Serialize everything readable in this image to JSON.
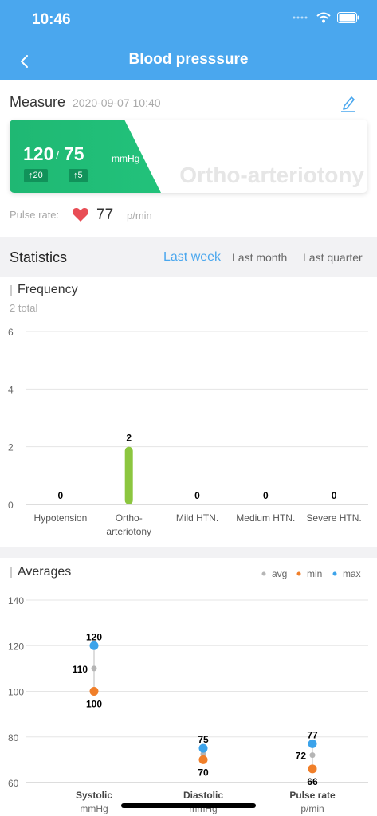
{
  "status_bar": {
    "time": "10:46"
  },
  "header": {
    "title": "Blood presssure"
  },
  "measure": {
    "label": "Measure",
    "datetime": "2020-09-07 10:40",
    "systolic": "120",
    "separator": "/",
    "diastolic": "75",
    "unit": "mmHg",
    "systolic_change": "↑20",
    "diastolic_change": "↑5",
    "classification": "Ortho-arteriotony",
    "pulse_label": "Pulse rate:",
    "pulse_value": "77",
    "pulse_unit": "p/min",
    "accent_color": "#1fb873"
  },
  "statistics": {
    "title": "Statistics",
    "tabs": [
      "Last week",
      "Last month",
      "Last quarter"
    ],
    "active_tab": "Last week"
  },
  "frequency": {
    "title": "Frequency",
    "subtitle": "2 total"
  },
  "averages": {
    "title": "Averages",
    "legend": [
      {
        "label": "avg",
        "color": "#b5b5b5"
      },
      {
        "label": "min",
        "color": "#f07f2a"
      },
      {
        "label": "max",
        "color": "#3ca3ea"
      }
    ]
  },
  "chart_data": [
    {
      "type": "bar",
      "title": "Frequency",
      "categories": [
        "Hypotension",
        "Ortho-arteriotony",
        "Mild HTN.",
        "Medium HTN.",
        "Severe HTN."
      ],
      "category_labels": [
        [
          "Hypotension"
        ],
        [
          "Ortho-",
          "arteriotony"
        ],
        [
          "Mild HTN."
        ],
        [
          "Medium HTN."
        ],
        [
          "Severe HTN."
        ]
      ],
      "values": [
        0,
        2,
        0,
        0,
        0
      ],
      "ylim": [
        0,
        6
      ],
      "yticks": [
        0,
        2,
        4,
        6
      ],
      "bar_color": "#8cc63f",
      "grid": true
    },
    {
      "type": "scatter",
      "title": "Averages",
      "categories": [
        "Systolic",
        "Diastolic",
        "Pulse rate"
      ],
      "units": [
        "mmHg",
        "mmHg",
        "p/min"
      ],
      "ylim": [
        60,
        140
      ],
      "yticks": [
        60,
        80,
        100,
        120,
        140
      ],
      "series": [
        {
          "name": "avg",
          "values": [
            110,
            72.5,
            72
          ]
        },
        {
          "name": "min",
          "values": [
            100,
            70,
            66
          ]
        },
        {
          "name": "max",
          "values": [
            120,
            75,
            77
          ]
        }
      ],
      "labels": {
        "avg": [
          "110",
          "",
          "72"
        ],
        "min": [
          "100",
          "70",
          "66"
        ],
        "max": [
          "120",
          "75",
          "77"
        ]
      },
      "legend_position": "top-right",
      "grid": true
    }
  ]
}
